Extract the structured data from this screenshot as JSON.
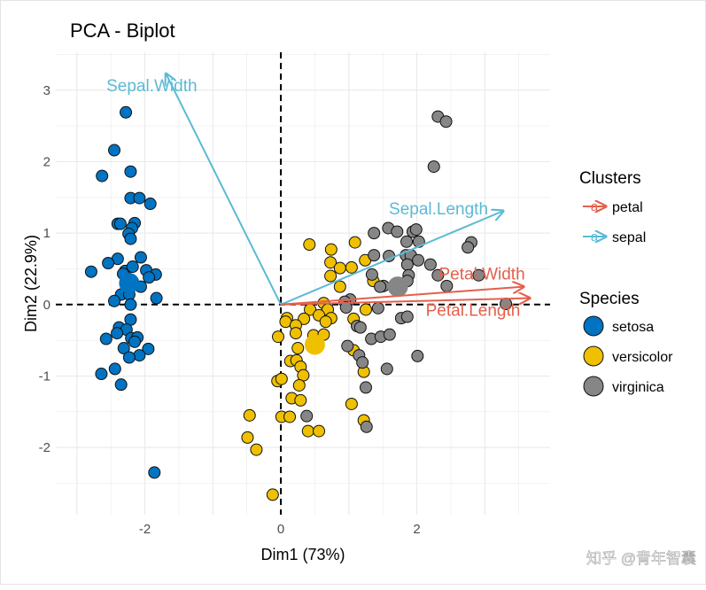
{
  "chart_data": {
    "type": "scatter",
    "title": "PCA - Biplot",
    "xlabel": "Dim1 (73%)",
    "ylabel": "Dim2 (22.9%)",
    "xlim": [
      -3.31,
      3.96
    ],
    "ylim": [
      -2.94,
      3.53
    ],
    "xticks": [
      -2,
      0,
      2
    ],
    "yticks": [
      -2,
      -1,
      0,
      1,
      2,
      3
    ],
    "grid": true,
    "legend_placement": "right",
    "legends": {
      "clusters": {
        "title": "Clusters",
        "entries": [
          {
            "name": "petal",
            "color": "#E3604C"
          },
          {
            "name": "sepal",
            "color": "#5BBAD5"
          }
        ]
      },
      "species": {
        "title": "Species",
        "entries": [
          {
            "name": "setosa",
            "color": "#0073C2"
          },
          {
            "name": "versicolor",
            "color": "#EFC000"
          },
          {
            "name": "virginica",
            "color": "#868686"
          }
        ]
      }
    },
    "arrows": [
      {
        "label": "Sepal.Width",
        "cluster": "sepal",
        "x": -1.69,
        "y": 3.23
      },
      {
        "label": "Sepal.Length",
        "cluster": "sepal",
        "x": 3.27,
        "y": 1.31
      },
      {
        "label": "Petal.Width",
        "cluster": "petal",
        "x": 3.57,
        "y": 0.25
      },
      {
        "label": "Petal.Length",
        "cluster": "petal",
        "x": 3.66,
        "y": 0.09
      }
    ],
    "centroids": [
      {
        "species": "setosa",
        "x": -2.23,
        "y": 0.3
      },
      {
        "species": "versicolor",
        "x": 0.5,
        "y": -0.56
      },
      {
        "species": "virginica",
        "x": 1.72,
        "y": 0.25
      }
    ],
    "series": [
      {
        "name": "setosa",
        "points": [
          [
            -2.28,
            2.69
          ],
          [
            -2.45,
            2.16
          ],
          [
            -2.63,
            1.8
          ],
          [
            -2.21,
            1.86
          ],
          [
            -2.21,
            1.49
          ],
          [
            -2.08,
            1.49
          ],
          [
            -1.92,
            1.41
          ],
          [
            -2.4,
            1.13
          ],
          [
            -2.36,
            1.13
          ],
          [
            -2.15,
            1.14
          ],
          [
            -2.19,
            1.07
          ],
          [
            -2.24,
            0.99
          ],
          [
            -2.21,
            0.92
          ],
          [
            -2.06,
            0.66
          ],
          [
            -2.4,
            0.64
          ],
          [
            -2.54,
            0.58
          ],
          [
            -2.79,
            0.46
          ],
          [
            -2.29,
            0.47
          ],
          [
            -2.18,
            0.53
          ],
          [
            -1.98,
            0.48
          ],
          [
            -1.84,
            0.42
          ],
          [
            -1.94,
            0.38
          ],
          [
            -2.32,
            0.43
          ],
          [
            -2.06,
            0.25
          ],
          [
            -2.35,
            0.14
          ],
          [
            -2.23,
            0.14
          ],
          [
            -1.83,
            0.09
          ],
          [
            -2.45,
            0.05
          ],
          [
            -2.21,
            0.0
          ],
          [
            -2.21,
            -0.21
          ],
          [
            -2.38,
            -0.32
          ],
          [
            -2.27,
            -0.35
          ],
          [
            -2.41,
            -0.4
          ],
          [
            -2.57,
            -0.48
          ],
          [
            -2.2,
            -0.47
          ],
          [
            -2.11,
            -0.46
          ],
          [
            -2.15,
            -0.52
          ],
          [
            -2.31,
            -0.61
          ],
          [
            -1.95,
            -0.62
          ],
          [
            -2.08,
            -0.71
          ],
          [
            -2.23,
            -0.74
          ],
          [
            -2.44,
            -0.9
          ],
          [
            -2.64,
            -0.97
          ],
          [
            -2.35,
            -1.12
          ],
          [
            -1.86,
            -2.35
          ]
        ]
      },
      {
        "name": "versicolor",
        "points": [
          [
            0.42,
            0.84
          ],
          [
            0.74,
            0.77
          ],
          [
            1.09,
            0.87
          ],
          [
            0.73,
            0.59
          ],
          [
            0.87,
            0.51
          ],
          [
            1.04,
            0.52
          ],
          [
            1.24,
            0.62
          ],
          [
            0.73,
            0.4
          ],
          [
            0.87,
            0.25
          ],
          [
            1.36,
            0.33
          ],
          [
            0.63,
            0.02
          ],
          [
            0.43,
            -0.07
          ],
          [
            0.69,
            -0.07
          ],
          [
            0.56,
            -0.15
          ],
          [
            0.74,
            -0.19
          ],
          [
            0.66,
            -0.24
          ],
          [
            0.09,
            -0.19
          ],
          [
            0.07,
            -0.24
          ],
          [
            0.34,
            -0.2
          ],
          [
            0.22,
            -0.29
          ],
          [
            0.22,
            -0.4
          ],
          [
            1.25,
            -0.07
          ],
          [
            1.07,
            -0.2
          ],
          [
            -0.04,
            -0.45
          ],
          [
            0.48,
            -0.43
          ],
          [
            0.63,
            -0.42
          ],
          [
            0.25,
            -0.61
          ],
          [
            1.07,
            -0.64
          ],
          [
            0.14,
            -0.79
          ],
          [
            0.23,
            -0.78
          ],
          [
            0.29,
            -0.87
          ],
          [
            1.22,
            -0.94
          ],
          [
            0.33,
            -0.99
          ],
          [
            -0.05,
            -1.07
          ],
          [
            0.01,
            -1.04
          ],
          [
            0.27,
            -1.13
          ],
          [
            0.16,
            -1.31
          ],
          [
            0.29,
            -1.34
          ],
          [
            1.04,
            -1.39
          ],
          [
            -0.46,
            -1.55
          ],
          [
            0.01,
            -1.57
          ],
          [
            0.13,
            -1.57
          ],
          [
            1.22,
            -1.62
          ],
          [
            -0.49,
            -1.86
          ],
          [
            0.4,
            -1.77
          ],
          [
            0.56,
            -1.77
          ],
          [
            -0.36,
            -2.03
          ],
          [
            -0.12,
            -2.66
          ]
        ]
      },
      {
        "name": "virginica",
        "points": [
          [
            2.31,
            2.63
          ],
          [
            2.43,
            2.56
          ],
          [
            2.25,
            1.93
          ],
          [
            1.37,
            1.0
          ],
          [
            1.58,
            1.07
          ],
          [
            1.71,
            1.02
          ],
          [
            1.94,
            1.02
          ],
          [
            1.99,
            1.05
          ],
          [
            2.03,
            0.88
          ],
          [
            1.85,
            0.88
          ],
          [
            2.8,
            0.87
          ],
          [
            2.75,
            0.8
          ],
          [
            1.37,
            0.69
          ],
          [
            1.59,
            0.68
          ],
          [
            1.84,
            0.69
          ],
          [
            1.91,
            0.69
          ],
          [
            2.02,
            0.62
          ],
          [
            1.86,
            0.56
          ],
          [
            2.2,
            0.56
          ],
          [
            1.88,
            0.41
          ],
          [
            1.34,
            0.42
          ],
          [
            1.86,
            0.33
          ],
          [
            2.31,
            0.41
          ],
          [
            2.91,
            0.41
          ],
          [
            1.51,
            0.26
          ],
          [
            1.46,
            0.25
          ],
          [
            2.44,
            0.26
          ],
          [
            1.02,
            0.07
          ],
          [
            0.94,
            0.04
          ],
          [
            0.96,
            -0.04
          ],
          [
            1.43,
            -0.05
          ],
          [
            3.31,
            0.01
          ],
          [
            1.77,
            -0.19
          ],
          [
            1.86,
            -0.17
          ],
          [
            1.12,
            -0.3
          ],
          [
            1.17,
            -0.32
          ],
          [
            1.33,
            -0.48
          ],
          [
            1.47,
            -0.45
          ],
          [
            1.6,
            -0.42
          ],
          [
            0.98,
            -0.58
          ],
          [
            1.15,
            -0.71
          ],
          [
            1.2,
            -0.81
          ],
          [
            2.01,
            -0.72
          ],
          [
            1.56,
            -0.9
          ],
          [
            1.25,
            -1.16
          ],
          [
            0.38,
            -1.56
          ],
          [
            1.26,
            -1.71
          ]
        ]
      }
    ]
  },
  "watermark": "知乎 @青年智囊"
}
